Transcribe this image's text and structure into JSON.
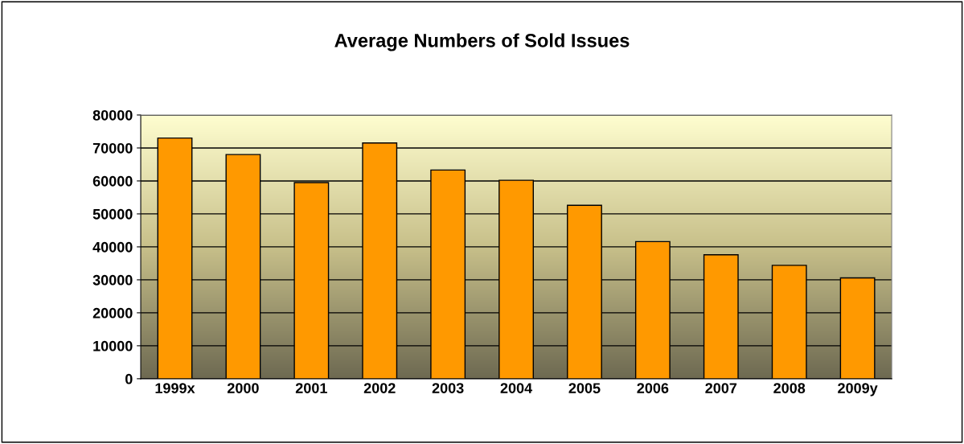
{
  "chart_data": {
    "type": "bar",
    "title": "Average Numbers of Sold Issues",
    "categories": [
      "1999x",
      "2000",
      "2001",
      "2002",
      "2003",
      "2004",
      "2005",
      "2006",
      "2007",
      "2008",
      "2009y"
    ],
    "values": [
      73000,
      68000,
      59500,
      71500,
      63300,
      60200,
      52600,
      41600,
      37600,
      34400,
      30600
    ],
    "color": "#ff9900",
    "ylim": [
      0,
      80000
    ],
    "yticks": [
      0,
      10000,
      20000,
      30000,
      40000,
      50000,
      60000,
      70000,
      80000
    ],
    "grid": "y",
    "legend": false
  }
}
